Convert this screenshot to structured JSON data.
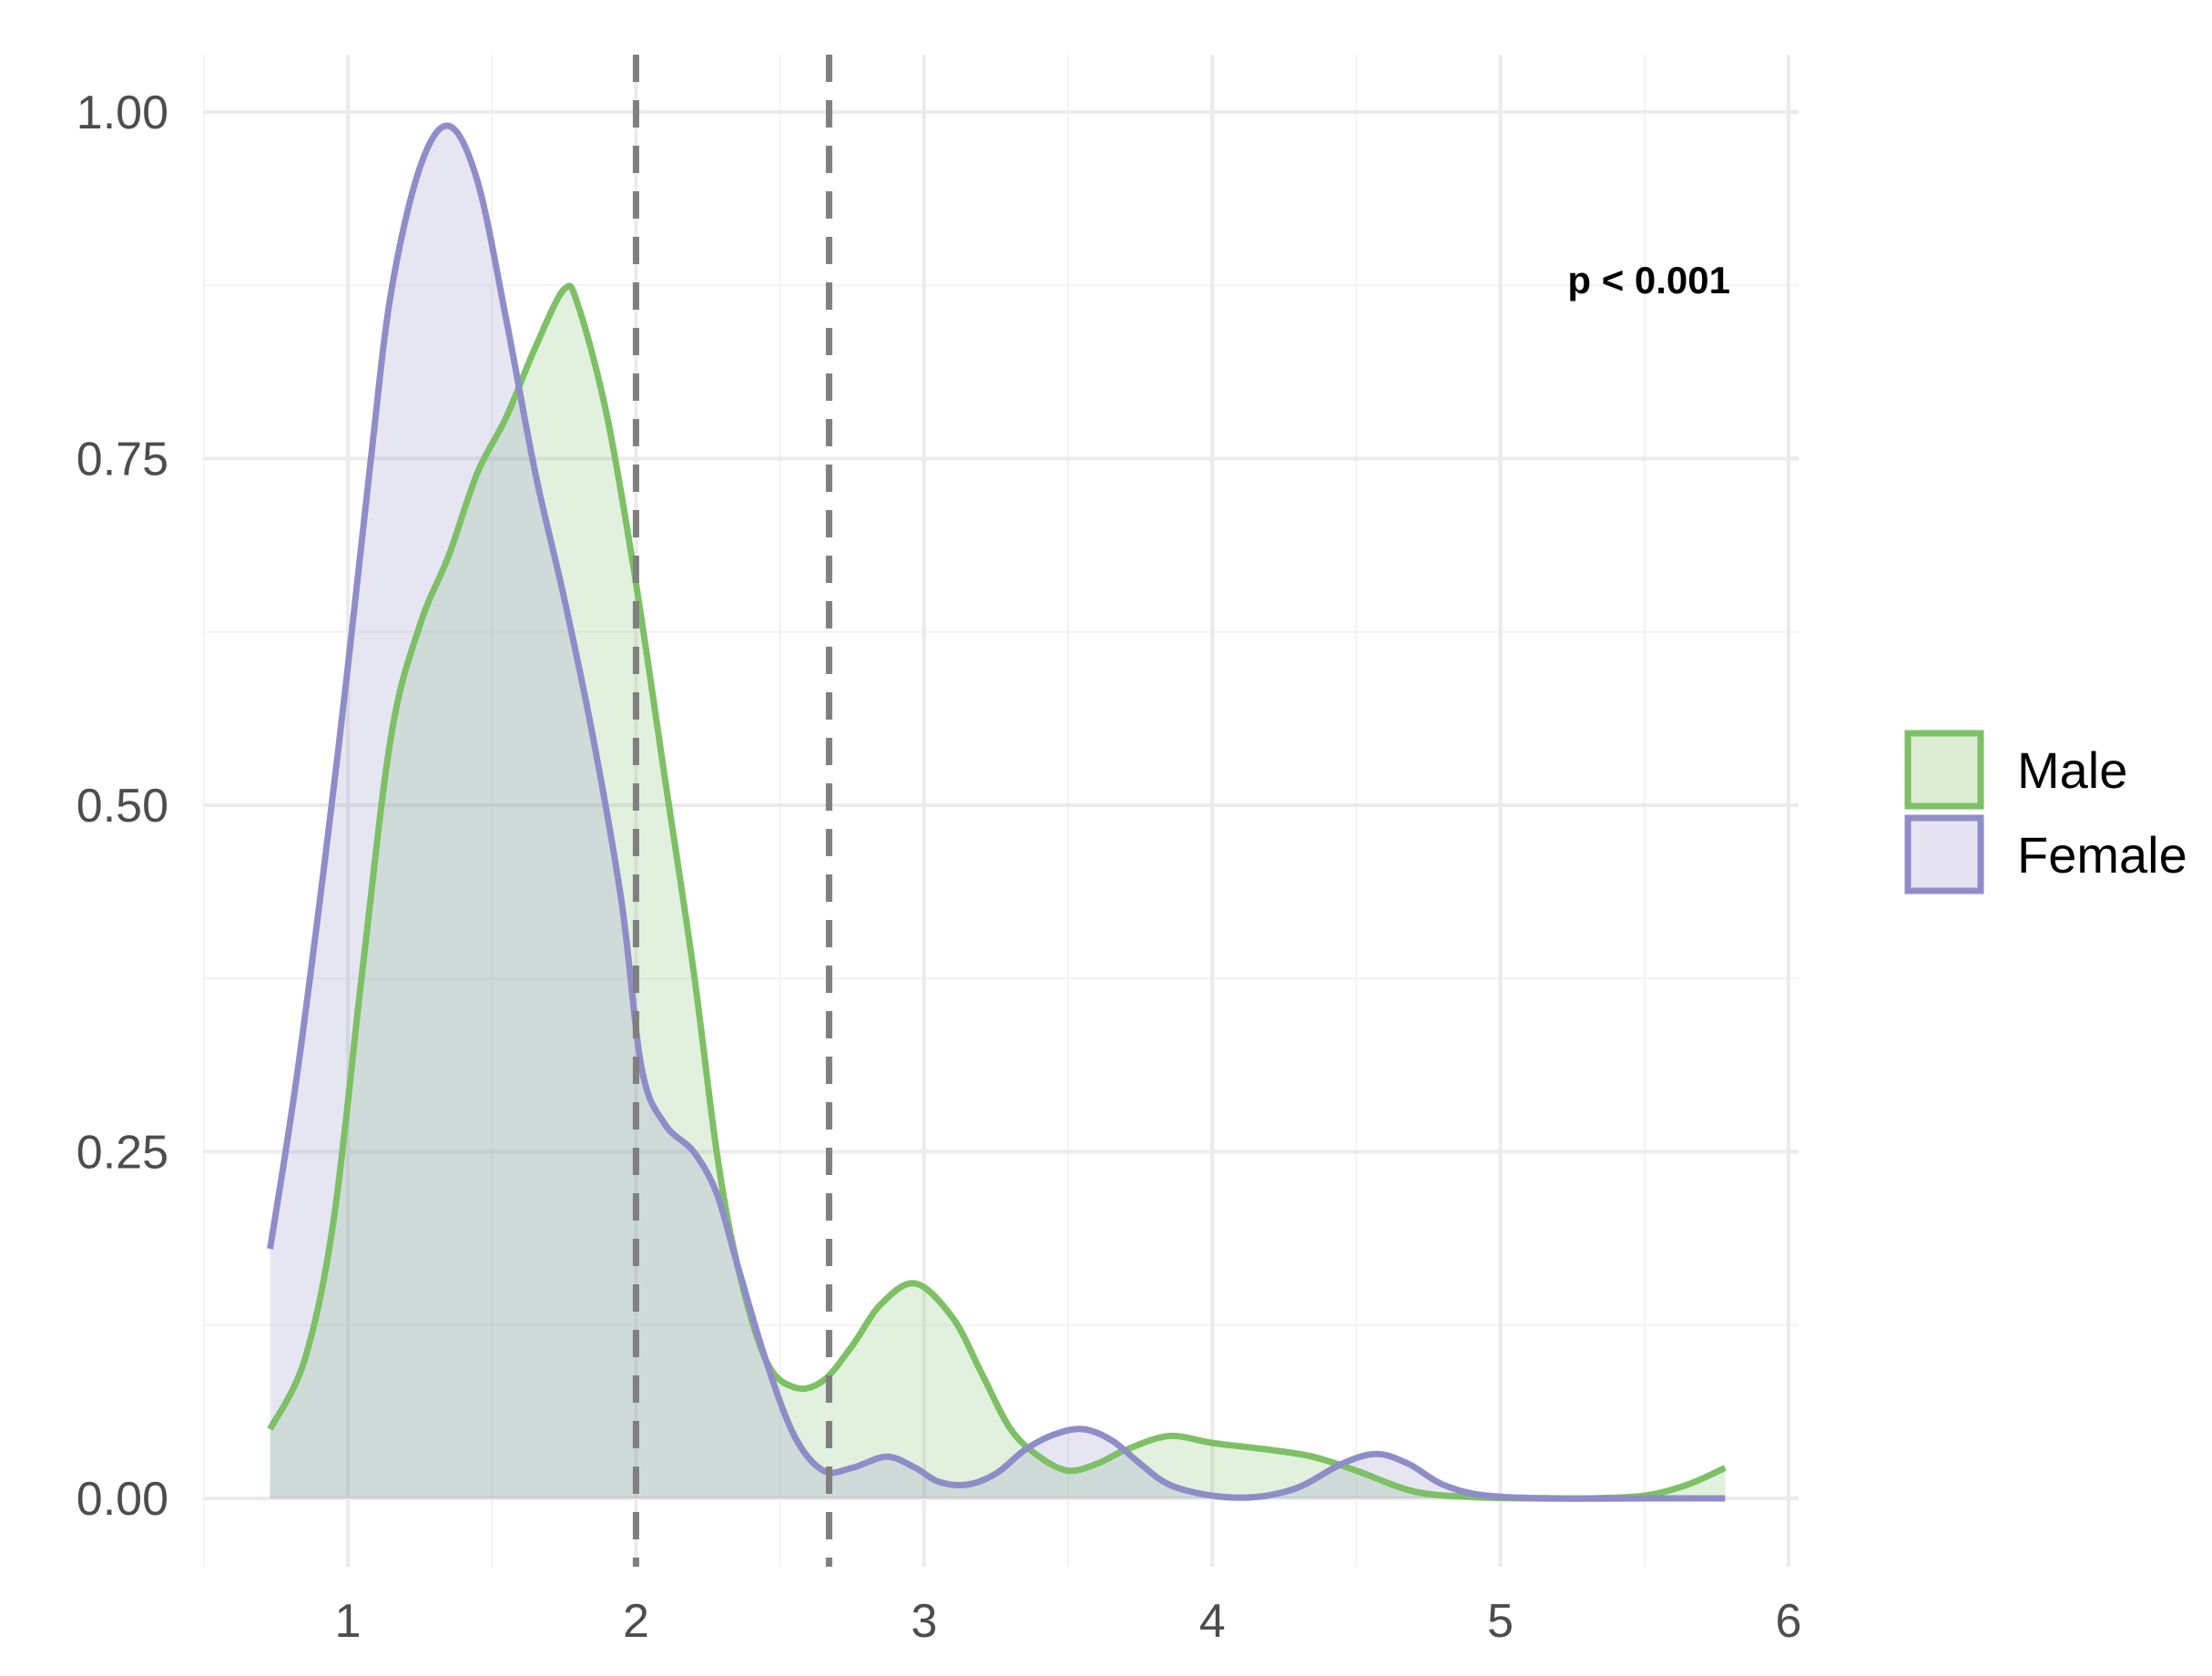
{
  "chart_data": {
    "type": "area",
    "title": "",
    "xlabel": "",
    "ylabel": "",
    "xlim": [
      0.5,
      6
    ],
    "ylim": [
      0,
      1.0
    ],
    "x_ticks": [
      1,
      2,
      3,
      4,
      5,
      6
    ],
    "x_tick_labels": [
      "1",
      "2",
      "3",
      "4",
      "5",
      "6"
    ],
    "y_ticks": [
      0,
      0.25,
      0.5,
      0.75,
      1.0
    ],
    "y_tick_labels": [
      "0.00",
      "0.25",
      "0.50",
      "0.75",
      "1.00"
    ],
    "grid": true,
    "legend_position": "right",
    "annotation": "p < 0.001",
    "vlines": [
      2.0,
      2.67
    ],
    "vline_color": "#7f7f7f",
    "series": [
      {
        "name": "Male",
        "color": "#7dc065",
        "fill": "#dcedd3",
        "points": [
          [
            0.73,
            0.05
          ],
          [
            0.85,
            0.1
          ],
          [
            0.95,
            0.2
          ],
          [
            1.05,
            0.38
          ],
          [
            1.15,
            0.55
          ],
          [
            1.25,
            0.63
          ],
          [
            1.35,
            0.68
          ],
          [
            1.45,
            0.74
          ],
          [
            1.55,
            0.78
          ],
          [
            1.65,
            0.83
          ],
          [
            1.75,
            0.872
          ],
          [
            1.8,
            0.86
          ],
          [
            1.9,
            0.78
          ],
          [
            2.0,
            0.66
          ],
          [
            2.1,
            0.52
          ],
          [
            2.2,
            0.38
          ],
          [
            2.28,
            0.25
          ],
          [
            2.35,
            0.17
          ],
          [
            2.45,
            0.1
          ],
          [
            2.55,
            0.08
          ],
          [
            2.65,
            0.085
          ],
          [
            2.75,
            0.11
          ],
          [
            2.85,
            0.14
          ],
          [
            2.97,
            0.155
          ],
          [
            3.1,
            0.13
          ],
          [
            3.2,
            0.09
          ],
          [
            3.3,
            0.05
          ],
          [
            3.4,
            0.03
          ],
          [
            3.5,
            0.02
          ],
          [
            3.6,
            0.025
          ],
          [
            3.7,
            0.035
          ],
          [
            3.85,
            0.045
          ],
          [
            4.0,
            0.04
          ],
          [
            4.2,
            0.035
          ],
          [
            4.35,
            0.03
          ],
          [
            4.5,
            0.02
          ],
          [
            4.7,
            0.005
          ],
          [
            4.9,
            0.001
          ],
          [
            5.1,
            0.0
          ],
          [
            5.3,
            0.0
          ],
          [
            5.5,
            0.002
          ],
          [
            5.65,
            0.01
          ],
          [
            5.78,
            0.022
          ]
        ]
      },
      {
        "name": "Female",
        "color": "#8f8dc8",
        "fill": "#e6e4f3",
        "points": [
          [
            0.73,
            0.18
          ],
          [
            0.82,
            0.3
          ],
          [
            0.92,
            0.46
          ],
          [
            1.0,
            0.6
          ],
          [
            1.08,
            0.75
          ],
          [
            1.15,
            0.87
          ],
          [
            1.25,
            0.96
          ],
          [
            1.35,
            0.99
          ],
          [
            1.45,
            0.95
          ],
          [
            1.55,
            0.85
          ],
          [
            1.65,
            0.74
          ],
          [
            1.75,
            0.65
          ],
          [
            1.85,
            0.55
          ],
          [
            1.95,
            0.43
          ],
          [
            2.02,
            0.31
          ],
          [
            2.1,
            0.27
          ],
          [
            2.2,
            0.25
          ],
          [
            2.28,
            0.22
          ],
          [
            2.35,
            0.17
          ],
          [
            2.45,
            0.1
          ],
          [
            2.55,
            0.045
          ],
          [
            2.65,
            0.02
          ],
          [
            2.75,
            0.022
          ],
          [
            2.87,
            0.03
          ],
          [
            2.97,
            0.022
          ],
          [
            3.05,
            0.012
          ],
          [
            3.15,
            0.01
          ],
          [
            3.25,
            0.018
          ],
          [
            3.35,
            0.035
          ],
          [
            3.45,
            0.046
          ],
          [
            3.55,
            0.05
          ],
          [
            3.65,
            0.042
          ],
          [
            3.75,
            0.025
          ],
          [
            3.85,
            0.01
          ],
          [
            4.0,
            0.002
          ],
          [
            4.15,
            0.001
          ],
          [
            4.3,
            0.008
          ],
          [
            4.45,
            0.025
          ],
          [
            4.57,
            0.032
          ],
          [
            4.68,
            0.025
          ],
          [
            4.8,
            0.01
          ],
          [
            4.95,
            0.002
          ],
          [
            5.2,
            0.0
          ],
          [
            5.5,
            0.0
          ],
          [
            5.78,
            0.0
          ]
        ]
      }
    ]
  }
}
